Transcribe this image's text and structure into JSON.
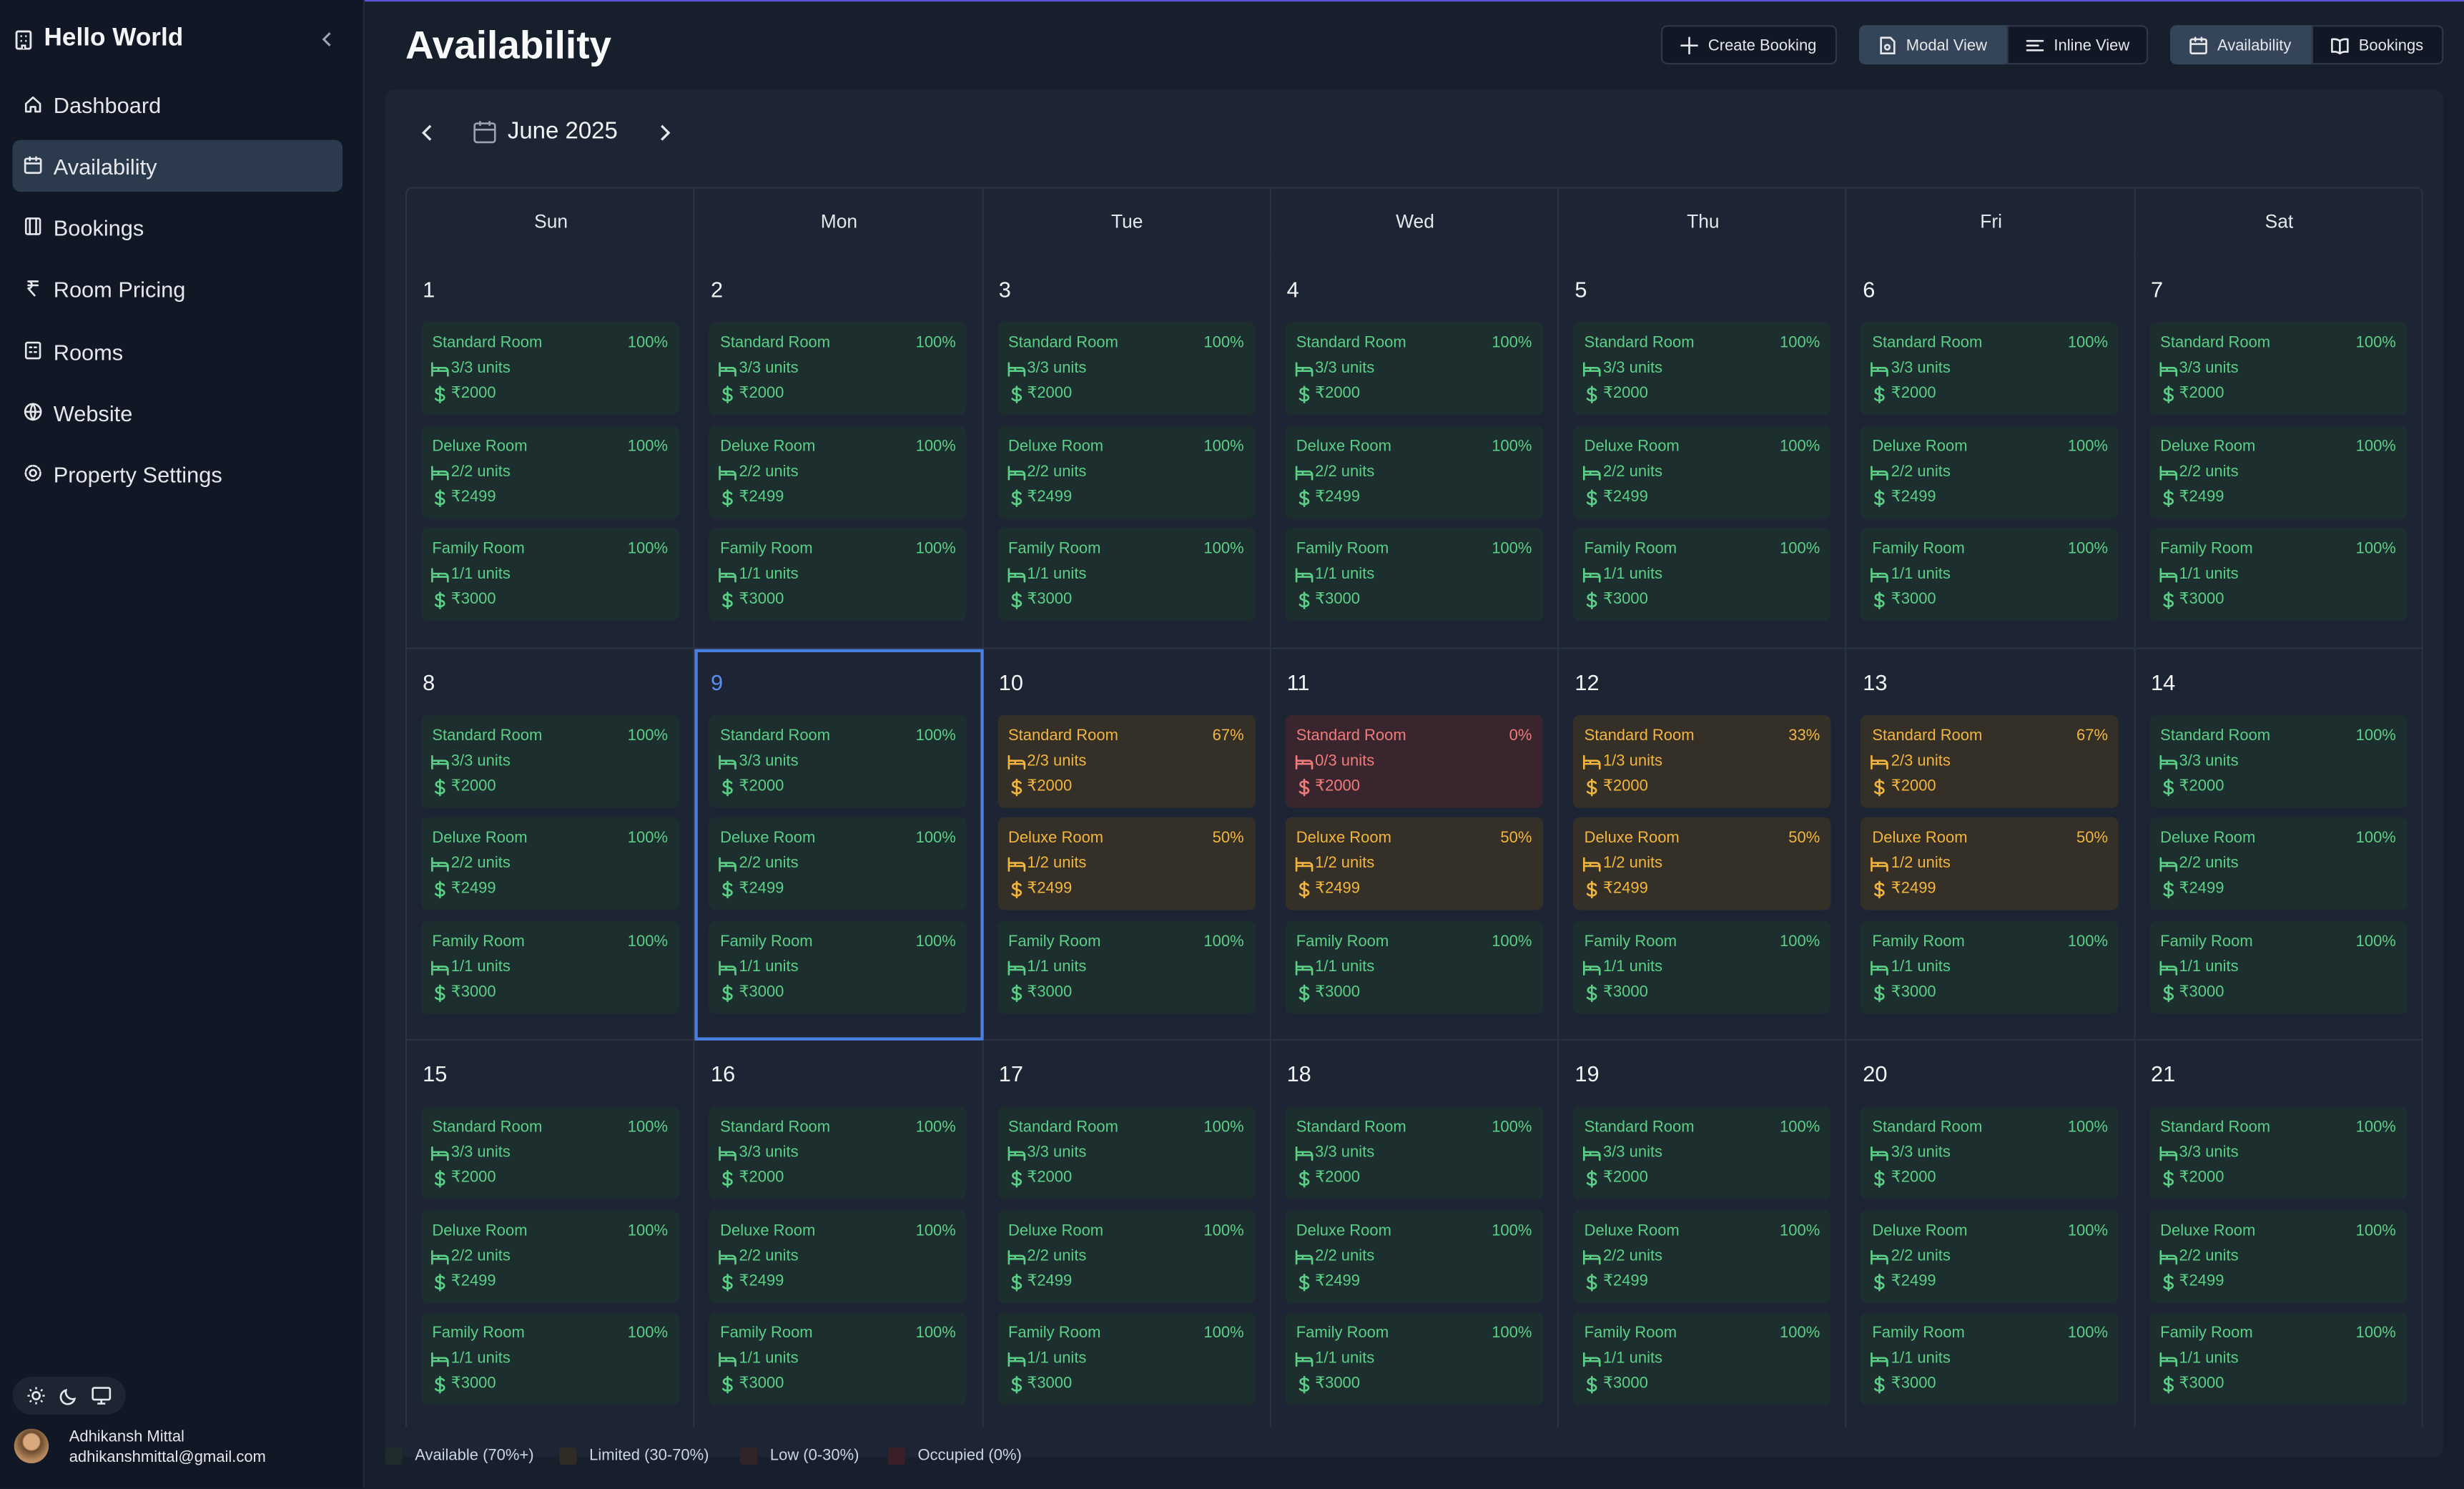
{
  "sidebar": {
    "brand": "Hello World",
    "nav": [
      "Dashboard",
      "Availability",
      "Bookings",
      "Room Pricing",
      "Rooms",
      "Website",
      "Property Settings"
    ],
    "user": {
      "name": "Adhikansh Mittal",
      "email": "adhikanshmittal@gmail.com"
    }
  },
  "header": {
    "title": "Availability",
    "buttons": [
      "Create Booking",
      "Modal View",
      "Inline View",
      "Availability",
      "Bookings"
    ]
  },
  "calendar": {
    "month": "June 2025",
    "weekdays": [
      "Sun",
      "Mon",
      "Tue",
      "Wed",
      "Thu",
      "Fri",
      "Sat"
    ],
    "weeks": [
      [
        {
          "date": "1",
          "rooms": [
            {
              "name": "Standard Room",
              "percent": "100%",
              "units": "3/3 units",
              "price": "₹2000"
            },
            {
              "name": "Deluxe Room",
              "percent": "100%",
              "units": "2/2 units",
              "price": "₹2499"
            },
            {
              "name": "Family Room",
              "percent": "100%",
              "units": "1/1 units",
              "price": "₹3000"
            }
          ]
        },
        {
          "date": "2",
          "rooms": [
            {
              "name": "Standard Room",
              "percent": "100%",
              "units": "3/3 units",
              "price": "₹2000"
            },
            {
              "name": "Deluxe Room",
              "percent": "100%",
              "units": "2/2 units",
              "price": "₹2499"
            },
            {
              "name": "Family Room",
              "percent": "100%",
              "units": "1/1 units",
              "price": "₹3000"
            }
          ]
        },
        {
          "date": "3",
          "rooms": [
            {
              "name": "Standard Room",
              "percent": "100%",
              "units": "3/3 units",
              "price": "₹2000"
            },
            {
              "name": "Deluxe Room",
              "percent": "100%",
              "units": "2/2 units",
              "price": "₹2499"
            },
            {
              "name": "Family Room",
              "percent": "100%",
              "units": "1/1 units",
              "price": "₹3000"
            }
          ]
        },
        {
          "date": "4",
          "rooms": [
            {
              "name": "Standard Room",
              "percent": "100%",
              "units": "3/3 units",
              "price": "₹2000"
            },
            {
              "name": "Deluxe Room",
              "percent": "100%",
              "units": "2/2 units",
              "price": "₹2499"
            },
            {
              "name": "Family Room",
              "percent": "100%",
              "units": "1/1 units",
              "price": "₹3000"
            }
          ]
        },
        {
          "date": "5",
          "rooms": [
            {
              "name": "Standard Room",
              "percent": "100%",
              "units": "3/3 units",
              "price": "₹2000"
            },
            {
              "name": "Deluxe Room",
              "percent": "100%",
              "units": "2/2 units",
              "price": "₹2499"
            },
            {
              "name": "Family Room",
              "percent": "100%",
              "units": "1/1 units",
              "price": "₹3000"
            }
          ]
        },
        {
          "date": "6",
          "rooms": [
            {
              "name": "Standard Room",
              "percent": "100%",
              "units": "3/3 units",
              "price": "₹2000"
            },
            {
              "name": "Deluxe Room",
              "percent": "100%",
              "units": "2/2 units",
              "price": "₹2499"
            },
            {
              "name": "Family Room",
              "percent": "100%",
              "units": "1/1 units",
              "price": "₹3000"
            }
          ]
        },
        {
          "date": "7",
          "rooms": [
            {
              "name": "Standard Room",
              "percent": "100%",
              "units": "3/3 units",
              "price": "₹2000"
            },
            {
              "name": "Deluxe Room",
              "percent": "100%",
              "units": "2/2 units",
              "price": "₹2499"
            },
            {
              "name": "Family Room",
              "percent": "100%",
              "units": "1/1 units",
              "price": "₹3000"
            }
          ]
        }
      ],
      [
        {
          "date": "8",
          "rooms": [
            {
              "name": "Standard Room",
              "percent": "100%",
              "units": "3/3 units",
              "price": "₹2000"
            },
            {
              "name": "Deluxe Room",
              "percent": "100%",
              "units": "2/2 units",
              "price": "₹2499"
            },
            {
              "name": "Family Room",
              "percent": "100%",
              "units": "1/1 units",
              "price": "₹3000"
            }
          ]
        },
        {
          "date": "9",
          "rooms": [
            {
              "name": "Standard Room",
              "percent": "100%",
              "units": "3/3 units",
              "price": "₹2000"
            },
            {
              "name": "Deluxe Room",
              "percent": "100%",
              "units": "2/2 units",
              "price": "₹2499"
            },
            {
              "name": "Family Room",
              "percent": "100%",
              "units": "1/1 units",
              "price": "₹3000"
            }
          ]
        },
        {
          "date": "10",
          "rooms": [
            {
              "name": "Standard Room",
              "percent": "67%",
              "units": "2/3 units",
              "price": "₹2000"
            },
            {
              "name": "Deluxe Room",
              "percent": "50%",
              "units": "1/2 units",
              "price": "₹2499"
            },
            {
              "name": "Family Room",
              "percent": "100%",
              "units": "1/1 units",
              "price": "₹3000"
            }
          ]
        },
        {
          "date": "11",
          "rooms": [
            {
              "name": "Standard Room",
              "percent": "0%",
              "units": "0/3 units",
              "price": "₹2000"
            },
            {
              "name": "Deluxe Room",
              "percent": "50%",
              "units": "1/2 units",
              "price": "₹2499"
            },
            {
              "name": "Family Room",
              "percent": "100%",
              "units": "1/1 units",
              "price": "₹3000"
            }
          ]
        },
        {
          "date": "12",
          "rooms": [
            {
              "name": "Standard Room",
              "percent": "33%",
              "units": "1/3 units",
              "price": "₹2000"
            },
            {
              "name": "Deluxe Room",
              "percent": "50%",
              "units": "1/2 units",
              "price": "₹2499"
            },
            {
              "name": "Family Room",
              "percent": "100%",
              "units": "1/1 units",
              "price": "₹3000"
            }
          ]
        },
        {
          "date": "13",
          "rooms": [
            {
              "name": "Standard Room",
              "percent": "67%",
              "units": "2/3 units",
              "price": "₹2000"
            },
            {
              "name": "Deluxe Room",
              "percent": "50%",
              "units": "1/2 units",
              "price": "₹2499"
            },
            {
              "name": "Family Room",
              "percent": "100%",
              "units": "1/1 units",
              "price": "₹3000"
            }
          ]
        },
        {
          "date": "14",
          "rooms": [
            {
              "name": "Standard Room",
              "percent": "100%",
              "units": "3/3 units",
              "price": "₹2000"
            },
            {
              "name": "Deluxe Room",
              "percent": "100%",
              "units": "2/2 units",
              "price": "₹2499"
            },
            {
              "name": "Family Room",
              "percent": "100%",
              "units": "1/1 units",
              "price": "₹3000"
            }
          ]
        }
      ],
      [
        {
          "date": "15",
          "rooms": [
            {
              "name": "Standard Room",
              "percent": "100%",
              "units": "3/3 units",
              "price": "₹2000"
            },
            {
              "name": "Deluxe Room",
              "percent": "100%",
              "units": "2/2 units",
              "price": "₹2499"
            },
            {
              "name": "Family Room",
              "percent": "100%",
              "units": "1/1 units",
              "price": "₹3000"
            }
          ]
        },
        {
          "date": "16",
          "rooms": [
            {
              "name": "Standard Room",
              "percent": "100%",
              "units": "3/3 units",
              "price": "₹2000"
            },
            {
              "name": "Deluxe Room",
              "percent": "100%",
              "units": "2/2 units",
              "price": "₹2499"
            },
            {
              "name": "Family Room",
              "percent": "100%",
              "units": "1/1 units",
              "price": "₹3000"
            }
          ]
        },
        {
          "date": "17",
          "rooms": [
            {
              "name": "Standard Room",
              "percent": "100%",
              "units": "3/3 units",
              "price": "₹2000"
            },
            {
              "name": "Deluxe Room",
              "percent": "100%",
              "units": "2/2 units",
              "price": "₹2499"
            },
            {
              "name": "Family Room",
              "percent": "100%",
              "units": "1/1 units",
              "price": "₹3000"
            }
          ]
        },
        {
          "date": "18",
          "rooms": [
            {
              "name": "Standard Room",
              "percent": "100%",
              "units": "3/3 units",
              "price": "₹2000"
            },
            {
              "name": "Deluxe Room",
              "percent": "100%",
              "units": "2/2 units",
              "price": "₹2499"
            },
            {
              "name": "Family Room",
              "percent": "100%",
              "units": "1/1 units",
              "price": "₹3000"
            }
          ]
        },
        {
          "date": "19",
          "rooms": [
            {
              "name": "Standard Room",
              "percent": "100%",
              "units": "3/3 units",
              "price": "₹2000"
            },
            {
              "name": "Deluxe Room",
              "percent": "100%",
              "units": "2/2 units",
              "price": "₹2499"
            },
            {
              "name": "Family Room",
              "percent": "100%",
              "units": "1/1 units",
              "price": "₹3000"
            }
          ]
        },
        {
          "date": "20",
          "rooms": [
            {
              "name": "Standard Room",
              "percent": "100%",
              "units": "3/3 units",
              "price": "₹2000"
            },
            {
              "name": "Deluxe Room",
              "percent": "100%",
              "units": "2/2 units",
              "price": "₹2499"
            },
            {
              "name": "Family Room",
              "percent": "100%",
              "units": "1/1 units",
              "price": "₹3000"
            }
          ]
        },
        {
          "date": "21",
          "rooms": [
            {
              "name": "Standard Room",
              "percent": "100%",
              "units": "3/3 units",
              "price": "₹2000"
            },
            {
              "name": "Deluxe Room",
              "percent": "100%",
              "units": "2/2 units",
              "price": "₹2499"
            },
            {
              "name": "Family Room",
              "percent": "100%",
              "units": "1/1 units",
              "price": "₹3000"
            }
          ]
        }
      ]
    ]
  },
  "legend": [
    "Available (70%+)",
    "Limited (30-70%)",
    "Low (0-30%)",
    "Occupied (0%)"
  ]
}
